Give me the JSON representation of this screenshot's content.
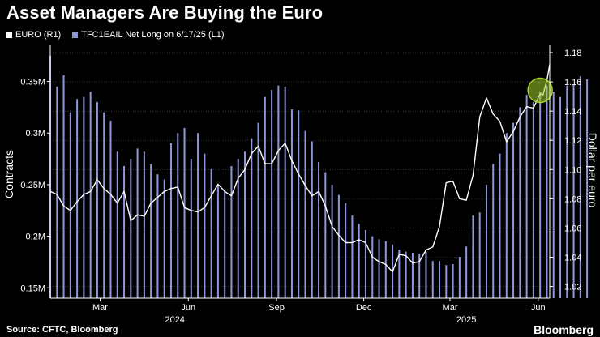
{
  "title": "Asset Managers Are Buying the Euro",
  "legend": {
    "line_label": "EURO (R1)",
    "bar_label": "TFC1EAIL Net Long on 6/17/25 (L1)"
  },
  "source": "Source: CFTC, Bloomberg",
  "brand": "Bloomberg",
  "colors": {
    "background": "#000000",
    "line": "#ffffff",
    "bars": "#8f98d6",
    "highlight": "#a6d12a"
  },
  "chart_data": {
    "type": "bar+line",
    "ylabel_left": "Contracts",
    "ylabel_right": "Dollar per euro",
    "left_axis": {
      "min": 0.14,
      "max": 0.385,
      "ticks": [
        0.15,
        0.2,
        0.25,
        0.3,
        0.35
      ],
      "tick_labels": [
        "0.15M",
        "0.2M",
        "0.25M",
        "0.3M",
        "0.35M"
      ]
    },
    "right_axis": {
      "min": 1.012,
      "max": 1.185,
      "ticks": [
        1.02,
        1.04,
        1.06,
        1.08,
        1.1,
        1.12,
        1.14,
        1.16,
        1.18
      ],
      "tick_labels": [
        "1.02",
        "1.04",
        "1.06",
        "1.08",
        "1.10",
        "1.12",
        "1.14",
        "1.16",
        "1.18"
      ]
    },
    "x_range": [
      "2024-01-23",
      "2025-06-27"
    ],
    "x_ticks": [
      {
        "date": "2024-03-15",
        "label": "Mar"
      },
      {
        "date": "2024-06-15",
        "label": "Jun"
      },
      {
        "date": "2024-09-15",
        "label": "Sep"
      },
      {
        "date": "2024-12-15",
        "label": "Dec"
      },
      {
        "date": "2025-03-15",
        "label": "Mar"
      },
      {
        "date": "2025-06-15",
        "label": "Jun"
      }
    ],
    "year_labels": [
      {
        "date": "2024-06-01",
        "label": "2024"
      },
      {
        "date": "2025-04-01",
        "label": "2025"
      }
    ],
    "highlight_date": "2025-06-17",
    "series": [
      {
        "name": "TFC1EAIL Net Long on 6/17/25 (L1)",
        "kind": "bar",
        "axis": "left",
        "start_date": "2024-01-23",
        "step_days": 7,
        "values": [
          0.375,
          0.345,
          0.356,
          0.32,
          0.333,
          0.335,
          0.34,
          0.33,
          0.32,
          0.312,
          0.282,
          0.268,
          0.275,
          0.285,
          0.282,
          0.27,
          0.26,
          0.255,
          0.29,
          0.3,
          0.305,
          0.275,
          0.3,
          0.28,
          0.265,
          0.25,
          0.245,
          0.268,
          0.275,
          0.282,
          0.295,
          0.31,
          0.335,
          0.342,
          0.346,
          0.345,
          0.323,
          0.322,
          0.302,
          0.292,
          0.272,
          0.262,
          0.25,
          0.24,
          0.232,
          0.22,
          0.212,
          0.206,
          0.2,
          0.197,
          0.195,
          0.192,
          0.187,
          0.185,
          0.184,
          0.183,
          0.185,
          0.176,
          0.176,
          0.172,
          0.173,
          0.18,
          0.19,
          0.22,
          0.223,
          0.25,
          0.27,
          0.28,
          0.3,
          0.31,
          0.325,
          0.337,
          0.33,
          0.34,
          0.346,
          0.34,
          0.335,
          0.346,
          0.347,
          0.355,
          0.352
        ]
      },
      {
        "name": "EURO (R1)",
        "kind": "line",
        "axis": "right",
        "points": [
          [
            "2024-01-23",
            1.085
          ],
          [
            "2024-01-30",
            1.083
          ],
          [
            "2024-02-06",
            1.075
          ],
          [
            "2024-02-13",
            1.072
          ],
          [
            "2024-02-20",
            1.078
          ],
          [
            "2024-02-27",
            1.083
          ],
          [
            "2024-03-05",
            1.085
          ],
          [
            "2024-03-12",
            1.093
          ],
          [
            "2024-03-19",
            1.087
          ],
          [
            "2024-03-26",
            1.083
          ],
          [
            "2024-04-02",
            1.077
          ],
          [
            "2024-04-09",
            1.085
          ],
          [
            "2024-04-16",
            1.065
          ],
          [
            "2024-04-23",
            1.069
          ],
          [
            "2024-04-30",
            1.068
          ],
          [
            "2024-05-07",
            1.077
          ],
          [
            "2024-05-14",
            1.081
          ],
          [
            "2024-05-21",
            1.085
          ],
          [
            "2024-05-28",
            1.087
          ],
          [
            "2024-06-04",
            1.088
          ],
          [
            "2024-06-11",
            1.074
          ],
          [
            "2024-06-18",
            1.072
          ],
          [
            "2024-06-25",
            1.071
          ],
          [
            "2024-07-02",
            1.074
          ],
          [
            "2024-07-09",
            1.082
          ],
          [
            "2024-07-16",
            1.09
          ],
          [
            "2024-07-23",
            1.085
          ],
          [
            "2024-07-30",
            1.082
          ],
          [
            "2024-08-06",
            1.094
          ],
          [
            "2024-08-13",
            1.1
          ],
          [
            "2024-08-20",
            1.111
          ],
          [
            "2024-08-27",
            1.116
          ],
          [
            "2024-09-03",
            1.104
          ],
          [
            "2024-09-10",
            1.104
          ],
          [
            "2024-09-17",
            1.113
          ],
          [
            "2024-09-24",
            1.118
          ],
          [
            "2024-10-01",
            1.106
          ],
          [
            "2024-10-08",
            1.097
          ],
          [
            "2024-10-15",
            1.089
          ],
          [
            "2024-10-22",
            1.082
          ],
          [
            "2024-10-29",
            1.085
          ],
          [
            "2024-11-05",
            1.075
          ],
          [
            "2024-11-12",
            1.061
          ],
          [
            "2024-11-19",
            1.055
          ],
          [
            "2024-11-26",
            1.05
          ],
          [
            "2024-12-03",
            1.05
          ],
          [
            "2024-12-10",
            1.052
          ],
          [
            "2024-12-17",
            1.05
          ],
          [
            "2024-12-24",
            1.04
          ],
          [
            "2024-12-31",
            1.037
          ],
          [
            "2025-01-07",
            1.035
          ],
          [
            "2025-01-14",
            1.03
          ],
          [
            "2025-01-21",
            1.042
          ],
          [
            "2025-01-28",
            1.041
          ],
          [
            "2025-02-04",
            1.036
          ],
          [
            "2025-02-11",
            1.037
          ],
          [
            "2025-02-18",
            1.045
          ],
          [
            "2025-02-25",
            1.047
          ],
          [
            "2025-03-04",
            1.061
          ],
          [
            "2025-03-11",
            1.091
          ],
          [
            "2025-03-18",
            1.092
          ],
          [
            "2025-03-25",
            1.08
          ],
          [
            "2025-04-01",
            1.079
          ],
          [
            "2025-04-08",
            1.096
          ],
          [
            "2025-04-15",
            1.136
          ],
          [
            "2025-04-22",
            1.149
          ],
          [
            "2025-04-29",
            1.138
          ],
          [
            "2025-05-06",
            1.133
          ],
          [
            "2025-05-13",
            1.119
          ],
          [
            "2025-05-20",
            1.126
          ],
          [
            "2025-05-27",
            1.136
          ],
          [
            "2025-06-03",
            1.143
          ],
          [
            "2025-06-10",
            1.142
          ],
          [
            "2025-06-17",
            1.152
          ],
          [
            "2025-06-20",
            1.151
          ],
          [
            "2025-06-24",
            1.161
          ],
          [
            "2025-06-27",
            1.172
          ]
        ]
      }
    ]
  }
}
